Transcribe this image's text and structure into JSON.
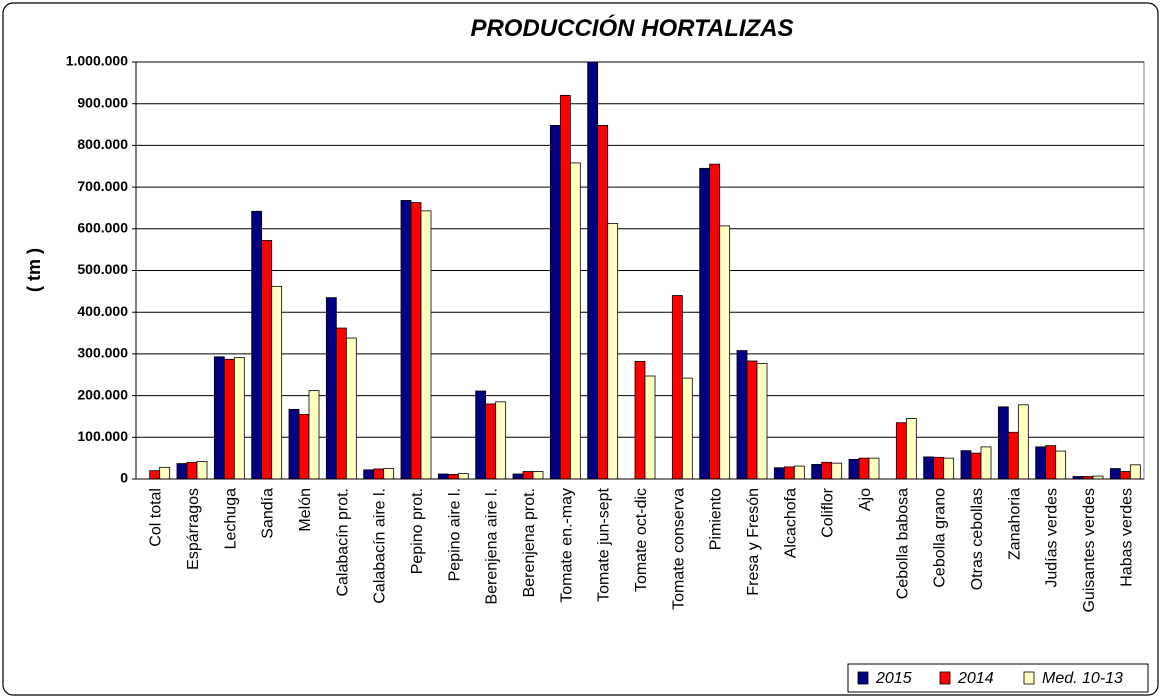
{
  "chart_data": {
    "type": "bar",
    "title": "PRODUCCIÓN HORTALIZAS",
    "y_label": "( tm )",
    "categories": [
      "Col total",
      "Espárragos",
      "Lechuga",
      "Sandía",
      "Melón",
      "Calabacín prot.",
      "Calabacín aire l.",
      "Pepino prot.",
      "Pepino aire l.",
      "Berenjena aire l.",
      "Berenjena prot.",
      "Tomate en.-may",
      "Tomate jun-sept",
      "Tomate oct-dic",
      "Tomate conserva",
      "Pimiento",
      "Fresa y Fresón",
      "Alcachofa",
      "Coliflor",
      "Ajo",
      "Cebolla babosa",
      "Cebolla grano",
      "Otras cebollas",
      "Zanahoria",
      "Judías verdes",
      "Guisantes verdes",
      "Habas verdes"
    ],
    "series": [
      {
        "name": "2015",
        "color": "#000080",
        "values": [
          null,
          37000,
          293000,
          642000,
          167000,
          435000,
          22000,
          668000,
          12000,
          211000,
          12000,
          848000,
          1000000,
          null,
          null,
          745000,
          308000,
          27000,
          35000,
          47000,
          null,
          53000,
          68000,
          173000,
          77000,
          6000,
          25000
        ]
      },
      {
        "name": "2014",
        "color": "#ff0000",
        "values": [
          20000,
          40000,
          287000,
          572000,
          155000,
          362000,
          24000,
          663000,
          11000,
          180000,
          18000,
          920000,
          848000,
          282000,
          440000,
          755000,
          283000,
          29000,
          40000,
          50000,
          135000,
          52000,
          62000,
          112000,
          80000,
          6000,
          18000
        ]
      },
      {
        "name": "Med. 10-13",
        "color": "#ffffc0",
        "values": [
          28000,
          42000,
          291000,
          462000,
          212000,
          338000,
          25000,
          643000,
          13000,
          185000,
          18000,
          758000,
          613000,
          247000,
          242000,
          607000,
          277000,
          31000,
          38000,
          50000,
          145000,
          50000,
          77000,
          178000,
          67000,
          7000,
          34000
        ]
      }
    ],
    "ylim": [
      0,
      1000000
    ],
    "yticks": [
      0,
      {
        "value": 100000,
        "label": "100.000"
      },
      {
        "value": 200000,
        "label": "200.000"
      },
      {
        "value": 300000,
        "label": "300.000"
      },
      {
        "value": 400000,
        "label": "400.000"
      },
      {
        "value": 500000,
        "label": "500.000"
      },
      {
        "value": 600000,
        "label": "600.000"
      },
      {
        "value": 700000,
        "label": "700.000"
      },
      {
        "value": 800000,
        "label": "800.000"
      },
      {
        "value": 900000,
        "label": "900.000"
      },
      {
        "value": 1000000,
        "label": "1.000.000"
      }
    ],
    "grid": true,
    "legend": "bottom-right"
  }
}
